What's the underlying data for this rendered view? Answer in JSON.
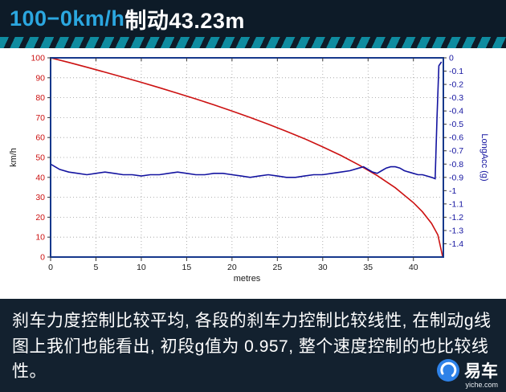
{
  "header": {
    "title_highlight": "100−0km/h",
    "title_rest": "制动43.23m"
  },
  "caption": {
    "text": "刹车力度控制比较平均, 各段的刹车力控制比较线性, 在制动g线图上我们也能看出, 初段g值为 0.957, 整个速度控制的也比较线性。"
  },
  "logo": {
    "name": "易车",
    "url": "yiche.com"
  },
  "chart_data": {
    "type": "line",
    "title": "",
    "xlabel": "metres",
    "ylabel_left": "km/h",
    "ylabel_right": "LongAcc (g)",
    "x_range": [
      0,
      43.3
    ],
    "x_ticks": [
      0,
      5,
      10,
      15,
      20,
      25,
      30,
      35,
      40
    ],
    "y_left_range": [
      0,
      100
    ],
    "y_left_ticks": [
      0,
      10,
      20,
      30,
      40,
      50,
      60,
      70,
      80,
      90,
      100
    ],
    "y_right_range": [
      -1.5,
      0
    ],
    "y_right_ticks": [
      0,
      -0.1,
      -0.2,
      -0.3,
      -0.4,
      -0.5,
      -0.6,
      -0.7,
      -0.8,
      -0.9,
      -1,
      -1.1,
      -1.2,
      -1.3,
      -1.4
    ],
    "grid": true,
    "legend": "none",
    "colors": {
      "speed": "#cc1111",
      "longacc": "#1414a0",
      "border": "#16388c",
      "grid": "#9a9a9a",
      "axis_text": "#1a1a1a"
    },
    "series": [
      {
        "name": "speed",
        "axis": "left",
        "color": "#cc1111",
        "points": [
          [
            0,
            100
          ],
          [
            2,
            97.7
          ],
          [
            4,
            95.3
          ],
          [
            6,
            92.8
          ],
          [
            8,
            90.3
          ],
          [
            10,
            87.7
          ],
          [
            12,
            85.0
          ],
          [
            14,
            82.2
          ],
          [
            16,
            79.4
          ],
          [
            18,
            76.4
          ],
          [
            20,
            73.3
          ],
          [
            22,
            70.1
          ],
          [
            24,
            66.7
          ],
          [
            26,
            63.1
          ],
          [
            28,
            59.4
          ],
          [
            30,
            55.3
          ],
          [
            32,
            51.0
          ],
          [
            34,
            46.2
          ],
          [
            36,
            40.9
          ],
          [
            38,
            34.8
          ],
          [
            40,
            27.3
          ],
          [
            41,
            22.7
          ],
          [
            42,
            16.9
          ],
          [
            42.7,
            11.1
          ],
          [
            43.23,
            0
          ]
        ]
      },
      {
        "name": "longacc",
        "axis": "right",
        "color": "#1414a0",
        "points": [
          [
            0,
            -0.8
          ],
          [
            1,
            -0.84
          ],
          [
            2,
            -0.86
          ],
          [
            3,
            -0.87
          ],
          [
            4,
            -0.88
          ],
          [
            5,
            -0.87
          ],
          [
            6,
            -0.86
          ],
          [
            7,
            -0.87
          ],
          [
            8,
            -0.88
          ],
          [
            9,
            -0.88
          ],
          [
            10,
            -0.89
          ],
          [
            11,
            -0.88
          ],
          [
            12,
            -0.88
          ],
          [
            13,
            -0.87
          ],
          [
            14,
            -0.86
          ],
          [
            15,
            -0.87
          ],
          [
            16,
            -0.88
          ],
          [
            17,
            -0.88
          ],
          [
            18,
            -0.87
          ],
          [
            19,
            -0.87
          ],
          [
            20,
            -0.88
          ],
          [
            21,
            -0.89
          ],
          [
            22,
            -0.9
          ],
          [
            23,
            -0.89
          ],
          [
            24,
            -0.88
          ],
          [
            25,
            -0.89
          ],
          [
            26,
            -0.9
          ],
          [
            27,
            -0.9
          ],
          [
            28,
            -0.89
          ],
          [
            29,
            -0.88
          ],
          [
            30,
            -0.88
          ],
          [
            31,
            -0.87
          ],
          [
            32,
            -0.86
          ],
          [
            33,
            -0.85
          ],
          [
            34,
            -0.83
          ],
          [
            34.5,
            -0.82
          ],
          [
            35,
            -0.84
          ],
          [
            35.5,
            -0.86
          ],
          [
            36,
            -0.87
          ],
          [
            36.5,
            -0.85
          ],
          [
            37,
            -0.83
          ],
          [
            37.5,
            -0.82
          ],
          [
            38,
            -0.82
          ],
          [
            38.5,
            -0.83
          ],
          [
            39,
            -0.85
          ],
          [
            39.5,
            -0.86
          ],
          [
            40,
            -0.87
          ],
          [
            40.5,
            -0.88
          ],
          [
            41,
            -0.88
          ],
          [
            41.5,
            -0.89
          ],
          [
            42,
            -0.9
          ],
          [
            42.4,
            -0.91
          ],
          [
            42.6,
            -0.45
          ],
          [
            42.8,
            -0.06
          ],
          [
            43.1,
            -0.03
          ]
        ]
      }
    ]
  }
}
